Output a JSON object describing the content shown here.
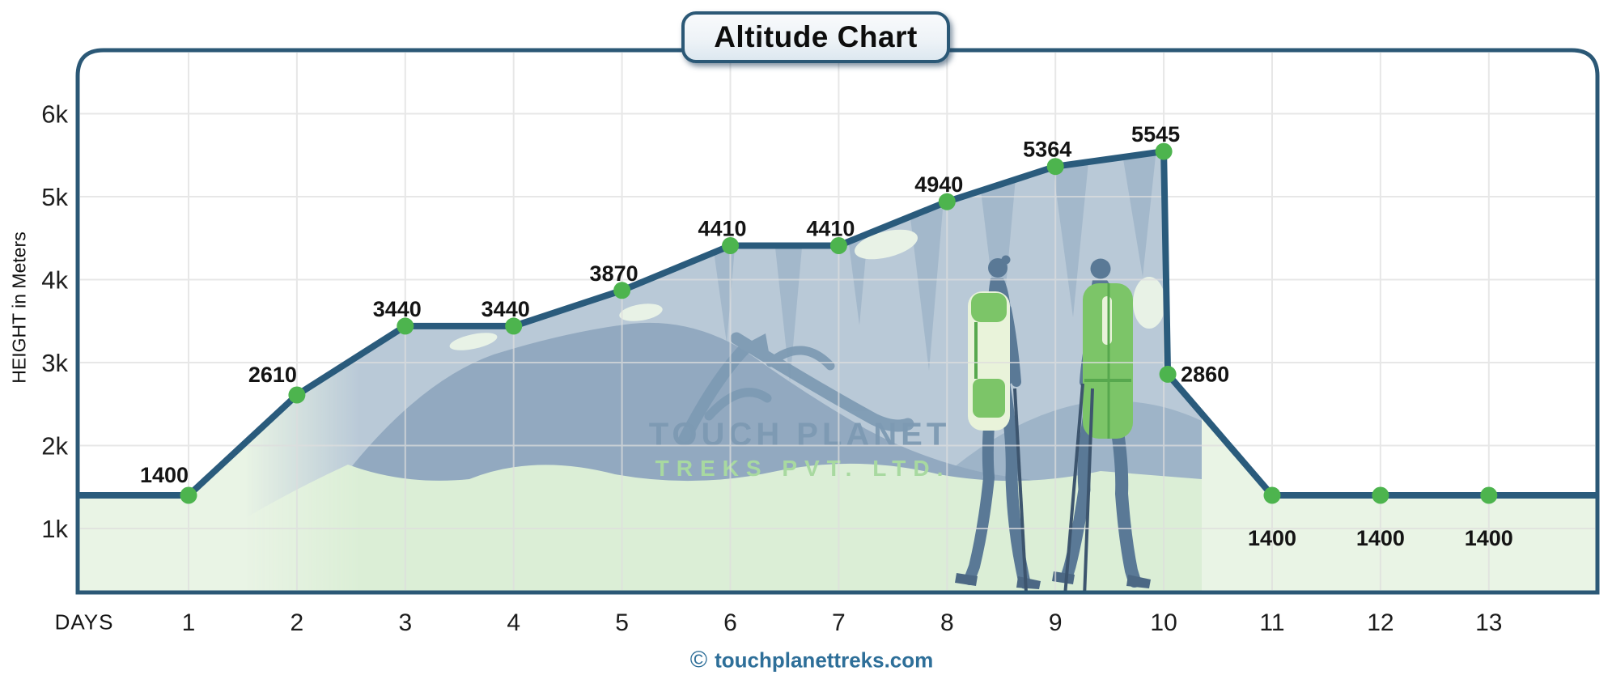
{
  "title": "Altitude Chart",
  "axes": {
    "y_title": "HEIGHT in Meters",
    "x_title": "DAYS"
  },
  "watermark": {
    "line1": "TOUCH PLANET",
    "line2": "TREKS PVT. LTD."
  },
  "footer": {
    "icon": "©",
    "text": "touchplanettreks.com"
  },
  "colors": {
    "line": "#2a5b7c",
    "dot": "#4db44e",
    "area_fill": "#e9f4e5",
    "frame": "#2b5876",
    "grid": "#dedede",
    "footer_text": "#2e6f99",
    "label_text": "#141414"
  },
  "chart_data": {
    "type": "area",
    "title": "Altitude Chart",
    "xlabel": "DAYS",
    "ylabel": "HEIGHT in Meters",
    "x_tick_labels": [
      "1",
      "2",
      "3",
      "4",
      "5",
      "6",
      "7",
      "8",
      "9",
      "10",
      "11",
      "12",
      "13"
    ],
    "y_axis": {
      "tick_values": [
        1000,
        2000,
        3000,
        4000,
        5000,
        6000
      ],
      "tick_labels": [
        "1k",
        "2k",
        "3k",
        "4k",
        "5k",
        "6k"
      ],
      "plotted_min": 200,
      "plotted_max": 6600
    },
    "grid": true,
    "legend": false,
    "edge_value": 1400,
    "points": [
      {
        "day": 1,
        "altitude_m": 1400,
        "label": "1400",
        "label_pos": "above-left"
      },
      {
        "day": 2,
        "altitude_m": 2610,
        "label": "2610",
        "label_pos": "above-left"
      },
      {
        "day": 3,
        "altitude_m": 3440,
        "label": "3440",
        "label_pos": "above"
      },
      {
        "day": 4,
        "altitude_m": 3440,
        "label": "3440",
        "label_pos": "above"
      },
      {
        "day": 5,
        "altitude_m": 3870,
        "label": "3870",
        "label_pos": "above"
      },
      {
        "day": 6,
        "altitude_m": 4410,
        "label": "4410",
        "label_pos": "above"
      },
      {
        "day": 7,
        "altitude_m": 4410,
        "label": "4410",
        "label_pos": "above"
      },
      {
        "day": 8,
        "altitude_m": 4940,
        "label": "4940",
        "label_pos": "above"
      },
      {
        "day": 9,
        "altitude_m": 5364,
        "label": "5364",
        "label_pos": "above"
      },
      {
        "day": 10,
        "altitude_m": 5545,
        "label": "5545",
        "label_pos": "above"
      },
      {
        "day": 10,
        "altitude_m": 2860,
        "label": "2860",
        "label_pos": "right"
      },
      {
        "day": 11,
        "altitude_m": 1400,
        "label": "1400",
        "label_pos": "below"
      },
      {
        "day": 12,
        "altitude_m": 1400,
        "label": "1400",
        "label_pos": "below"
      },
      {
        "day": 13,
        "altitude_m": 1400,
        "label": "1400",
        "label_pos": "below"
      }
    ]
  }
}
